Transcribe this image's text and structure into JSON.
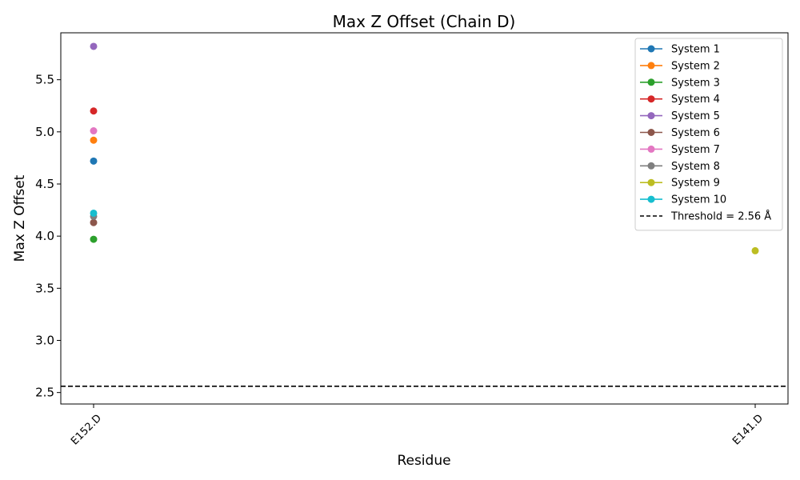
{
  "chart_data": {
    "type": "scatter",
    "title": "Max Z Offset (Chain D)",
    "xlabel": "Residue",
    "ylabel": "Max Z Offset",
    "categories": [
      "E152.D",
      "E141.D"
    ],
    "ylim": [
      2.39,
      5.95
    ],
    "yticks": [
      "2.5",
      "3.0",
      "3.5",
      "4.0",
      "4.5",
      "5.0",
      "5.5"
    ],
    "grid": false,
    "legend_position": "top-right",
    "series": [
      {
        "name": "System 1",
        "color": "#1f77b4",
        "points": [
          {
            "x": "E152.D",
            "y": 4.72
          }
        ]
      },
      {
        "name": "System 2",
        "color": "#ff7f0e",
        "points": [
          {
            "x": "E152.D",
            "y": 4.92
          }
        ]
      },
      {
        "name": "System 3",
        "color": "#2ca02c",
        "points": [
          {
            "x": "E152.D",
            "y": 3.97
          }
        ]
      },
      {
        "name": "System 4",
        "color": "#d62728",
        "points": [
          {
            "x": "E152.D",
            "y": 5.2
          }
        ]
      },
      {
        "name": "System 5",
        "color": "#9467bd",
        "points": [
          {
            "x": "E152.D",
            "y": 5.82
          }
        ]
      },
      {
        "name": "System 6",
        "color": "#8c564b",
        "points": [
          {
            "x": "E152.D",
            "y": 4.13
          }
        ]
      },
      {
        "name": "System 7",
        "color": "#e377c2",
        "points": [
          {
            "x": "E152.D",
            "y": 5.01
          }
        ]
      },
      {
        "name": "System 8",
        "color": "#7f7f7f",
        "points": [
          {
            "x": "E152.D",
            "y": 4.19
          }
        ]
      },
      {
        "name": "System 9",
        "color": "#bcbd22",
        "points": [
          {
            "x": "E141.D",
            "y": 3.86
          }
        ]
      },
      {
        "name": "System 10",
        "color": "#17becf",
        "points": [
          {
            "x": "E152.D",
            "y": 4.22
          }
        ]
      }
    ],
    "threshold": {
      "label": "Threshold = 2.56 Å",
      "value": 2.56,
      "color": "#000000",
      "style": "dashed"
    }
  }
}
